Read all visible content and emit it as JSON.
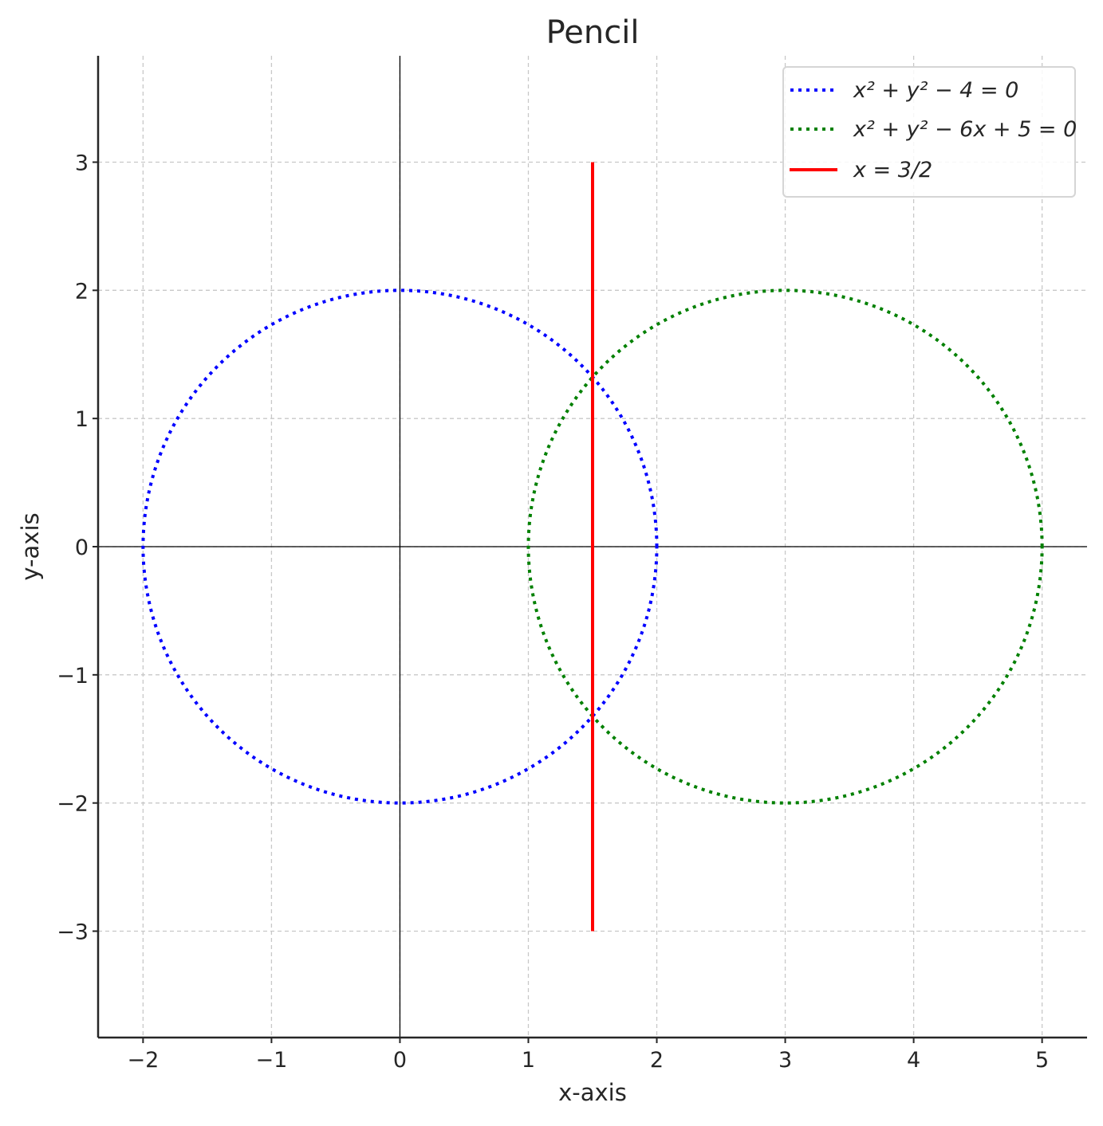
{
  "chart_data": {
    "type": "line",
    "title": "Pencil",
    "xlabel": "x-axis",
    "ylabel": "y-axis",
    "xlim": [
      -2.35,
      5.35
    ],
    "ylim": [
      -3.83,
      3.83
    ],
    "xticks": [
      -2,
      -1,
      0,
      1,
      2,
      3,
      4,
      5
    ],
    "yticks": [
      -3,
      -2,
      -1,
      0,
      1,
      2,
      3
    ],
    "xtick_labels": [
      "−2",
      "−1",
      "0",
      "1",
      "2",
      "3",
      "4",
      "5"
    ],
    "ytick_labels": [
      "−3",
      "−2",
      "−1",
      "0",
      "1",
      "2",
      "3"
    ],
    "grid": true,
    "legend_position": "top-right",
    "series": [
      {
        "name": "x² + y² − 4 = 0",
        "kind": "circle",
        "center": [
          0,
          0
        ],
        "radius": 2,
        "color": "#0000ff",
        "style": "dotted"
      },
      {
        "name": "x² + y² − 6x + 5 = 0",
        "kind": "circle",
        "center": [
          3,
          0
        ],
        "radius": 2,
        "color": "#008000",
        "style": "dotted"
      },
      {
        "name": "x = 3/2",
        "kind": "vline",
        "x": 1.5,
        "y_range": [
          -3,
          3
        ],
        "color": "#ff0000",
        "style": "solid"
      }
    ]
  }
}
